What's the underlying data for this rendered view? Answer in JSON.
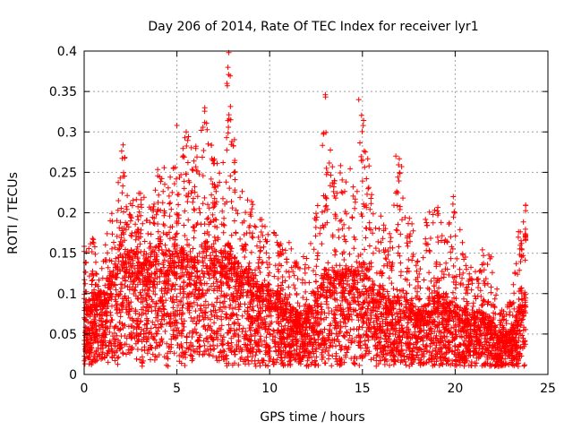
{
  "chart_data": {
    "type": "scatter",
    "title": "Day 206 of 2014, Rate Of TEC Index for receiver lyr1",
    "xlabel": "GPS time / hours",
    "ylabel": "ROTI / TECUs",
    "xlim": [
      0,
      25
    ],
    "ylim": [
      0,
      0.4
    ],
    "x_ticks": [
      0,
      5,
      10,
      15,
      20,
      25
    ],
    "x_tick_labels": [
      "0",
      "5",
      "10",
      "15",
      "20",
      "25"
    ],
    "y_ticks": [
      0,
      0.05,
      0.1,
      0.15,
      0.2,
      0.25,
      0.3,
      0.35,
      0.4
    ],
    "y_tick_labels": [
      "0",
      "0.05",
      "0.1",
      "0.15",
      "0.2",
      "0.25",
      "0.3",
      "0.35",
      "0.4"
    ],
    "grid": true,
    "marker": "plus",
    "color": "#ff0000",
    "series": [
      {
        "name": "ROTI",
        "x_range": [
          0,
          23.8
        ],
        "envelope": {
          "x": [
            0,
            0.5,
            1,
            1.5,
            2,
            2.2,
            2.5,
            3,
            3.5,
            4,
            4.3,
            4.7,
            5,
            5.5,
            6,
            6.5,
            7,
            7.5,
            7.8,
            8,
            8.5,
            9,
            9.5,
            10,
            10.5,
            11,
            11.5,
            12,
            12.5,
            13,
            13.5,
            14,
            14.5,
            15,
            15.5,
            16,
            16.5,
            17,
            17.5,
            18,
            18.5,
            19,
            19.5,
            20,
            20.5,
            21,
            21.5,
            22,
            22.5,
            23,
            23.5,
            23.8
          ],
          "upper": [
            0.16,
            0.17,
            0.16,
            0.2,
            0.28,
            0.27,
            0.23,
            0.23,
            0.21,
            0.26,
            0.26,
            0.27,
            0.3,
            0.3,
            0.28,
            0.33,
            0.27,
            0.27,
            0.4,
            0.32,
            0.23,
            0.22,
            0.2,
            0.19,
            0.18,
            0.17,
            0.14,
            0.15,
            0.21,
            0.35,
            0.26,
            0.27,
            0.25,
            0.34,
            0.23,
            0.2,
            0.18,
            0.27,
            0.2,
            0.16,
            0.2,
            0.21,
            0.17,
            0.22,
            0.15,
            0.13,
            0.16,
            0.15,
            0.08,
            0.09,
            0.18,
            0.21
          ],
          "typical": [
            0.07,
            0.08,
            0.08,
            0.1,
            0.13,
            0.12,
            0.12,
            0.12,
            0.11,
            0.13,
            0.12,
            0.12,
            0.13,
            0.12,
            0.11,
            0.13,
            0.12,
            0.12,
            0.13,
            0.12,
            0.1,
            0.1,
            0.09,
            0.08,
            0.08,
            0.07,
            0.06,
            0.06,
            0.08,
            0.1,
            0.1,
            0.1,
            0.1,
            0.11,
            0.09,
            0.08,
            0.07,
            0.08,
            0.07,
            0.06,
            0.07,
            0.08,
            0.07,
            0.07,
            0.06,
            0.06,
            0.06,
            0.05,
            0.04,
            0.04,
            0.07,
            0.08
          ],
          "lower": [
            0.01,
            0.01,
            0.02,
            0.01,
            0.01,
            0.02,
            0.02,
            0.01,
            0.01,
            0.02,
            0.01,
            0.01,
            0.01,
            0.01,
            0.02,
            0.02,
            0.02,
            0.01,
            0.01,
            0.01,
            0.01,
            0.01,
            0.01,
            0.01,
            0.01,
            0.01,
            0.01,
            0.01,
            0.01,
            0.01,
            0.01,
            0.01,
            0.01,
            0.01,
            0.01,
            0.01,
            0.01,
            0.01,
            0.01,
            0.01,
            0.01,
            0.01,
            0.01,
            0.01,
            0.01,
            0.01,
            0.01,
            0.01,
            0.01,
            0.01,
            0.01,
            0.01
          ]
        },
        "notable_points": [
          {
            "x": 7.8,
            "y": 0.398
          },
          {
            "x": 7.75,
            "y": 0.38
          },
          {
            "x": 7.7,
            "y": 0.36
          },
          {
            "x": 13.0,
            "y": 0.346
          },
          {
            "x": 14.8,
            "y": 0.34
          },
          {
            "x": 6.5,
            "y": 0.33
          },
          {
            "x": 5.0,
            "y": 0.308
          },
          {
            "x": 7.9,
            "y": 0.315
          },
          {
            "x": 5.5,
            "y": 0.3
          },
          {
            "x": 2.1,
            "y": 0.284
          },
          {
            "x": 23.8,
            "y": 0.209
          },
          {
            "x": 16.8,
            "y": 0.27
          },
          {
            "x": 19.9,
            "y": 0.22
          }
        ]
      }
    ]
  }
}
